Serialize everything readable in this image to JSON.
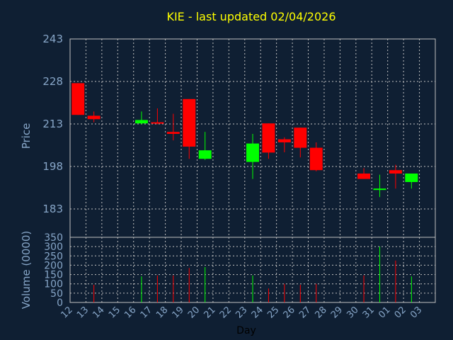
{
  "chart_data": {
    "type": "candlestick",
    "title": "KIE - last updated 02/04/2026",
    "ylabel": "Price",
    "volume_label": "Volume (0000)",
    "xlabel": "Day",
    "price_ticks": [
      "243",
      "228",
      "213",
      "198",
      "183"
    ],
    "volume_ticks": [
      "350",
      "300",
      "250",
      "200",
      "150",
      "100",
      "50",
      "0"
    ],
    "ylim": [
      173,
      243
    ],
    "volume_ylim": [
      0,
      350
    ],
    "x": [
      "12",
      "13",
      "14",
      "15",
      "16",
      "17",
      "18",
      "19",
      "20",
      "21",
      "22",
      "23",
      "24",
      "25",
      "26",
      "27",
      "28",
      "29",
      "30",
      "31",
      "01",
      "02",
      "03"
    ],
    "grid": true,
    "colors": {
      "background": "#0f1f33",
      "up": "#00ff00",
      "down": "#ff0000",
      "grid": "#c0c0c0",
      "title": "#ffff00",
      "axis_text": "#87a6c8"
    },
    "candles": [
      {
        "day": "12",
        "open": 227.4,
        "close": 216.2,
        "high": 227.4,
        "low": 216.2,
        "volume": 0
      },
      {
        "day": "13",
        "open": 215.9,
        "close": 214.7,
        "high": 217.4,
        "low": 213.6,
        "volume": 95
      },
      {
        "day": "16",
        "open": 213.2,
        "close": 214.4,
        "high": 217.4,
        "low": 212.9,
        "volume": 140
      },
      {
        "day": "17",
        "open": 213.6,
        "close": 213.2,
        "high": 218.5,
        "low": 212.9,
        "volume": 145
      },
      {
        "day": "18",
        "open": 210.2,
        "close": 209.5,
        "high": 216.6,
        "low": 207.2,
        "volume": 145
      },
      {
        "day": "19",
        "open": 221.8,
        "close": 205.0,
        "high": 221.8,
        "low": 200.7,
        "volume": 185
      },
      {
        "day": "20",
        "open": 200.7,
        "close": 203.7,
        "high": 210.2,
        "low": 200.3,
        "volume": 190
      },
      {
        "day": "23",
        "open": 199.6,
        "close": 206.1,
        "high": 209.5,
        "low": 193.6,
        "volume": 145
      },
      {
        "day": "24",
        "open": 213.2,
        "close": 202.9,
        "high": 213.2,
        "low": 200.7,
        "volume": 75
      },
      {
        "day": "25",
        "open": 207.6,
        "close": 206.5,
        "high": 208.3,
        "low": 203.0,
        "volume": 100
      },
      {
        "day": "26",
        "open": 211.7,
        "close": 204.6,
        "high": 211.7,
        "low": 201.2,
        "volume": 95
      },
      {
        "day": "27",
        "open": 204.6,
        "close": 196.7,
        "high": 206.5,
        "low": 196.3,
        "volume": 100
      },
      {
        "day": "30",
        "open": 195.5,
        "close": 193.6,
        "high": 197.4,
        "low": 193.6,
        "volume": 145
      },
      {
        "day": "31",
        "open": 189.9,
        "close": 190.2,
        "high": 195.1,
        "low": 187.2,
        "volume": 300
      },
      {
        "day": "01",
        "open": 196.7,
        "close": 195.5,
        "high": 198.6,
        "low": 190.2,
        "volume": 225
      },
      {
        "day": "02",
        "open": 192.5,
        "close": 195.5,
        "high": 195.5,
        "low": 190.2,
        "volume": 140
      }
    ]
  }
}
